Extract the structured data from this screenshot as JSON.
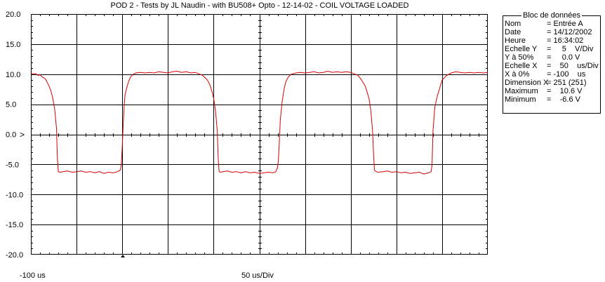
{
  "window": {
    "title": "POD 2 - Tests by JL Naudin - with BU508+ Opto -  12-14-02 - COIL VOLTAGE LOADED"
  },
  "axes": {
    "x_start_label": "-100 us",
    "x_scale_label": "50 us/Div",
    "zero_marker": ">"
  },
  "data_block": {
    "title": "Bloc de données",
    "rows": [
      {
        "label": "Nom",
        "value": "= Entrée A"
      },
      {
        "label": "Date",
        "value": "= 14/12/2002"
      },
      {
        "label": "Heure",
        "value": "= 16:34:02"
      },
      {
        "label": "Echelle Y",
        "value": "=     5    V/Div"
      },
      {
        "label": "Y à 50%",
        "value": "=     0.0 V"
      },
      {
        "label": "Echelle X",
        "value": "=    50    us/Div"
      },
      {
        "label": "X à 0%",
        "value": "= -100    us"
      },
      {
        "label": "Dimension X",
        "value": "= 251 (251)"
      },
      {
        "label": "Maximum",
        "value": "=    10.6 V"
      },
      {
        "label": "Minimum",
        "value": "=    -6.6 V"
      }
    ]
  },
  "colors": {
    "trace": "#d40000",
    "grid": "#000000",
    "background": "#ffffff"
  },
  "chart_data": {
    "type": "line",
    "title": "POD 2 - Tests by JL Naudin - with BU508+ Opto -  12-14-02 - COIL VOLTAGE LOADED",
    "xlabel": "50 us/Div",
    "ylabel": "",
    "xlim": [
      -100,
      400
    ],
    "ylim": [
      -20,
      20
    ],
    "x_divisions": 10,
    "y_ticks": [
      "20.0",
      "15.0",
      "10.0",
      "5.0",
      "0.0",
      "-5.0",
      "-10.0",
      "-15.0",
      "-20.0"
    ],
    "grid": true,
    "series": [
      {
        "x": [
          -100,
          -95,
          -92,
          -90,
          -88,
          -86,
          -84,
          -82,
          -80,
          -78,
          -76,
          -74,
          -72,
          -71,
          -70,
          -68,
          -65,
          -60,
          -55,
          -50,
          -45,
          -40,
          -35,
          -30,
          -25,
          -20,
          -15,
          -10,
          -5,
          -2,
          -1,
          0,
          1,
          2,
          3,
          5,
          7,
          9,
          12,
          15,
          20,
          25,
          30,
          35,
          40,
          45,
          50,
          55,
          60,
          65,
          70,
          75,
          80,
          85,
          88,
          90,
          92,
          94,
          96,
          98,
          100,
          102,
          104,
          105,
          106,
          108,
          110,
          115,
          120,
          125,
          130,
          135,
          140,
          145,
          150,
          155,
          160,
          165,
          168,
          170,
          171,
          172,
          173,
          175,
          177,
          179,
          182,
          185,
          190,
          195,
          200,
          205,
          210,
          215,
          220,
          225,
          230,
          235,
          240,
          245,
          250,
          255,
          258,
          260,
          262,
          264,
          266,
          268,
          270,
          272,
          274,
          275,
          276,
          278,
          280,
          285,
          290,
          295,
          300,
          305,
          310,
          315,
          320,
          325,
          330,
          335,
          338,
          339,
          340,
          342,
          345,
          348,
          350,
          355,
          360,
          365,
          370,
          375,
          380,
          385,
          390,
          395,
          400
        ],
        "y": [
          10.0,
          10.1,
          9.8,
          9.9,
          9.6,
          9.4,
          9.2,
          8.6,
          8.0,
          7.2,
          6.0,
          4.2,
          1.0,
          -4.0,
          -6.2,
          -6.3,
          -6.2,
          -6.1,
          -6.3,
          -6.2,
          -6.1,
          -6.3,
          -6.2,
          -6.4,
          -6.2,
          -6.5,
          -6.3,
          -6.4,
          -6.2,
          -5.9,
          -5.0,
          -2.0,
          1.5,
          4.5,
          6.5,
          7.8,
          8.8,
          9.5,
          10.0,
          10.2,
          10.3,
          10.2,
          10.3,
          10.2,
          10.4,
          10.3,
          10.2,
          10.4,
          10.5,
          10.3,
          10.4,
          10.2,
          10.3,
          10.0,
          9.8,
          9.5,
          9.2,
          8.8,
          8.2,
          7.2,
          6.0,
          4.0,
          0.5,
          -4.0,
          -6.2,
          -6.3,
          -6.2,
          -6.1,
          -6.3,
          -6.2,
          -6.4,
          -6.2,
          -6.4,
          -6.3,
          -6.5,
          -6.4,
          -6.3,
          -6.4,
          -6.2,
          -5.5,
          -4.0,
          -1.0,
          2.5,
          5.5,
          7.5,
          8.8,
          9.6,
          10.0,
          10.2,
          10.3,
          10.2,
          10.3,
          10.4,
          10.2,
          10.3,
          10.5,
          10.3,
          10.4,
          10.3,
          10.4,
          10.3,
          10.0,
          9.8,
          9.4,
          9.0,
          8.5,
          8.0,
          7.0,
          6.0,
          4.0,
          0.5,
          -3.5,
          -6.0,
          -6.2,
          -6.3,
          -6.2,
          -6.1,
          -6.3,
          -6.2,
          -6.4,
          -6.3,
          -6.5,
          -6.4,
          -6.3,
          -6.6,
          -6.4,
          -6.2,
          -5.0,
          0.5,
          4.5,
          6.5,
          8.0,
          9.0,
          9.8,
          10.2,
          10.4,
          10.3,
          10.2,
          10.3,
          10.2,
          10.3,
          10.2,
          10.3
        ]
      }
    ]
  }
}
